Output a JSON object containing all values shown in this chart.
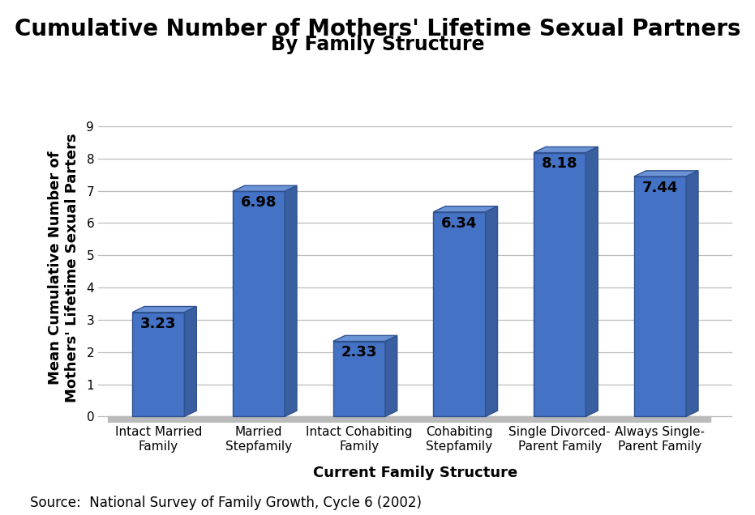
{
  "title_line1": "Cumulative Number of Mothers' Lifetime Sexual Partners",
  "title_line2": "By Family Structure",
  "categories": [
    "Intact Married\nFamily",
    "Married\nStepfamily",
    "Intact Cohabiting\nFamily",
    "Cohabiting\nStepfamily",
    "Single Divorced-\nParent Family",
    "Always Single-\nParent Family"
  ],
  "values": [
    3.23,
    6.98,
    2.33,
    6.34,
    8.18,
    7.44
  ],
  "bar_color": "#4472C4",
  "bar_top_color": "#5B8BD0",
  "bar_edge_color": "#2F528F",
  "ylabel": "Mean Cumulative Number of\nMothers' Lifetime Sexual Parters",
  "xlabel": "Current Family Structure",
  "source": "Source:  National Survey of Family Growth, Cycle 6 (2002)",
  "ylim": [
    0,
    9
  ],
  "yticks": [
    0,
    1,
    2,
    3,
    4,
    5,
    6,
    7,
    8,
    9
  ],
  "background_color": "#FFFFFF",
  "plot_bg_color": "#FFFFFF",
  "subtitle_box_color": "#C0C0C0",
  "subtitle_text_color": "#000000",
  "title_fontsize": 20,
  "subtitle_fontsize": 17,
  "label_fontsize": 11,
  "value_fontsize": 13,
  "axis_label_fontsize": 13,
  "source_fontsize": 12,
  "grid_color": "#BBBBBB",
  "floor_color": "#BBBBBB"
}
